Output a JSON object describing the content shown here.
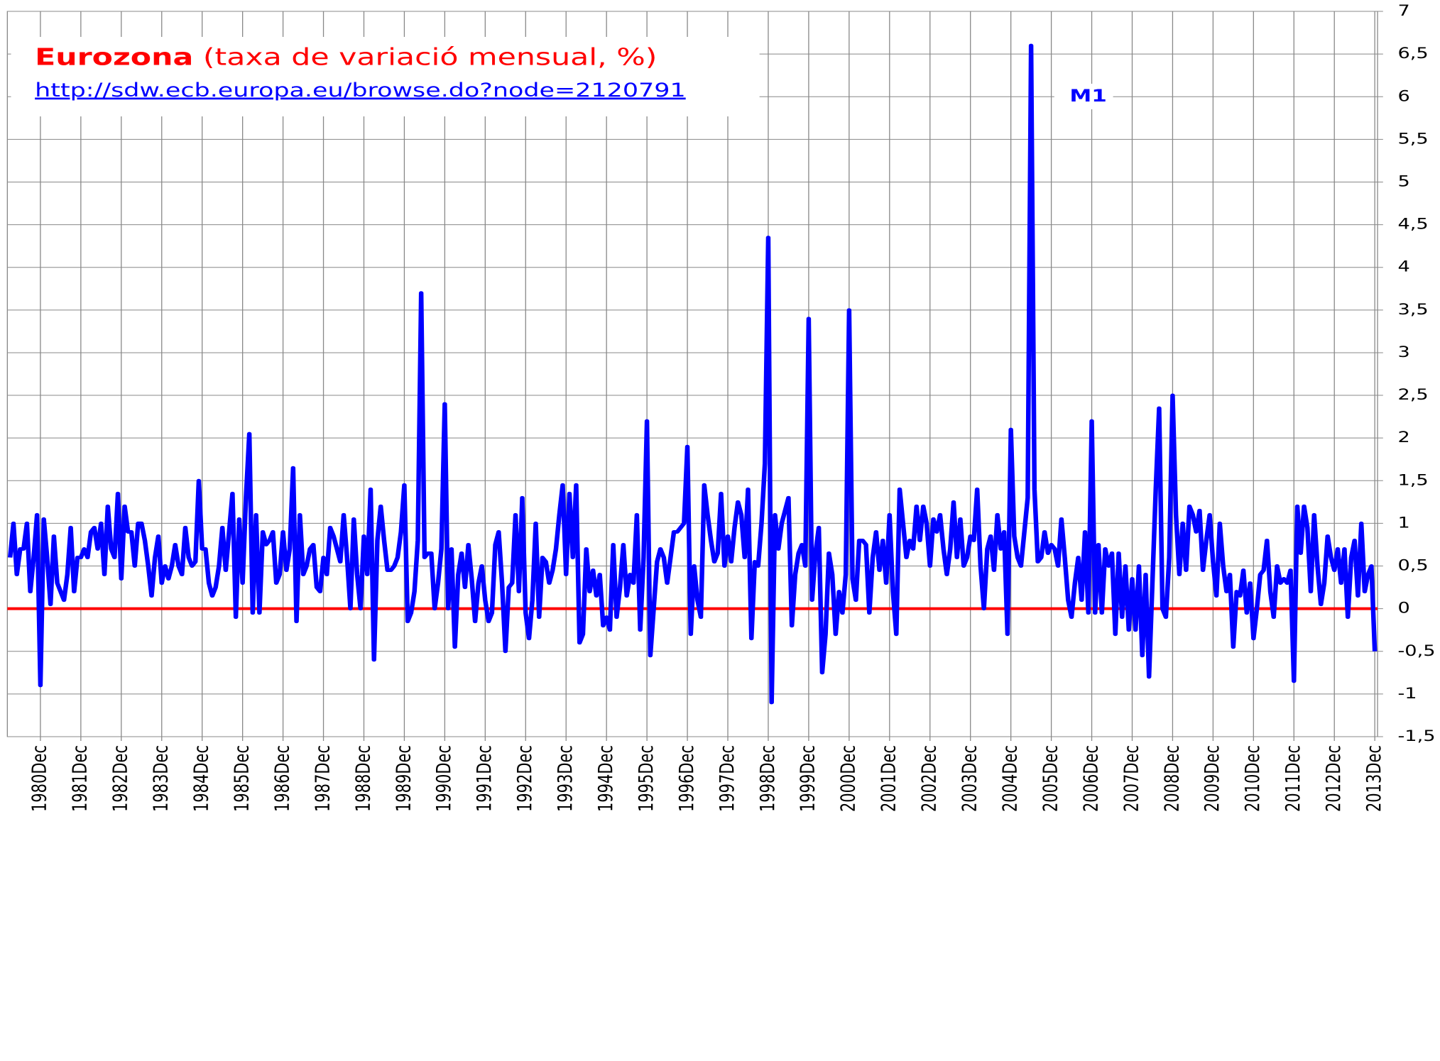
{
  "chart_data": {
    "type": "line",
    "title": "Eurozona",
    "subtitle": "(taxa de variació mensual, %)",
    "source_url": "http://sdw.ecb.europa.eu/browse.do?node=2120791",
    "ylim": [
      -1.5,
      7
    ],
    "yticks": [
      {
        "value": -1.5,
        "label": "-1,5"
      },
      -1,
      {
        "value": -0.5,
        "label": "-0,5"
      },
      0,
      {
        "value": 0.5,
        "label": "0,5"
      },
      1,
      {
        "value": 1.5,
        "label": "1,5"
      },
      2,
      {
        "value": 2.5,
        "label": "2,5"
      },
      3,
      {
        "value": 3.5,
        "label": "3,5"
      },
      4,
      {
        "value": 4.5,
        "label": "4,5"
      },
      5,
      {
        "value": 5.5,
        "label": "5,5"
      },
      6,
      {
        "value": 6.5,
        "label": "6,5"
      },
      7
    ],
    "grid": true,
    "zero_line_color": "#ff0000",
    "categories": [
      null,
      null,
      null,
      null,
      null,
      null,
      null,
      null,
      null,
      "1980Dec",
      null,
      null,
      null,
      null,
      null,
      null,
      null,
      null,
      null,
      null,
      null,
      "1981Dec",
      null,
      null,
      null,
      null,
      null,
      null,
      null,
      null,
      null,
      null,
      null,
      "1982Dec",
      null,
      null,
      null,
      null,
      null,
      null,
      null,
      null,
      null,
      null,
      null,
      "1983Dec",
      null,
      null,
      null,
      null,
      null,
      null,
      null,
      null,
      null,
      null,
      null,
      "1984Dec",
      null,
      null,
      null,
      null,
      null,
      null,
      null,
      null,
      null,
      null,
      null,
      "1985Dec",
      null,
      null,
      null,
      null,
      null,
      null,
      null,
      null,
      null,
      null,
      null,
      "1986Dec",
      null,
      null,
      null,
      null,
      null,
      null,
      null,
      null,
      null,
      null,
      null,
      "1987Dec",
      null,
      null,
      null,
      null,
      null,
      null,
      null,
      null,
      null,
      null,
      null,
      "1988Dec",
      null,
      null,
      null,
      null,
      null,
      null,
      null,
      null,
      null,
      null,
      null,
      "1989Dec",
      null,
      null,
      null,
      null,
      null,
      null,
      null,
      null,
      null,
      null,
      null,
      "1990Dec",
      null,
      null,
      null,
      null,
      null,
      null,
      null,
      null,
      null,
      null,
      null,
      "1991Dec",
      null,
      null,
      null,
      null,
      null,
      null,
      null,
      null,
      null,
      null,
      null,
      "1992Dec",
      null,
      null,
      null,
      null,
      null,
      null,
      null,
      null,
      null,
      null,
      null,
      "1993Dec",
      null,
      null,
      null,
      null,
      null,
      null,
      null,
      null,
      null,
      null,
      null,
      "1994Dec",
      null,
      null,
      null,
      null,
      null,
      null,
      null,
      null,
      null,
      null,
      null,
      "1995Dec",
      null,
      null,
      null,
      null,
      null,
      null,
      null,
      null,
      null,
      null,
      null,
      "1996Dec",
      null,
      null,
      null,
      null,
      null,
      null,
      null,
      null,
      null,
      null,
      null,
      "1997Dec",
      null,
      null,
      null,
      null,
      null,
      null,
      null,
      null,
      null,
      null,
      null,
      "1998Dec",
      null,
      null,
      null,
      null,
      null,
      null,
      null,
      null,
      null,
      null,
      null,
      "1999Dec",
      null,
      null,
      null,
      null,
      null,
      null,
      null,
      null,
      null,
      null,
      null,
      "2000Dec",
      null,
      null,
      null,
      null,
      null,
      null,
      null,
      null,
      null,
      null,
      null,
      "2001Dec",
      null,
      null,
      null,
      null,
      null,
      null,
      null,
      null,
      null,
      null,
      null,
      "2002Dec",
      null,
      null,
      null,
      null,
      null,
      null,
      null,
      null,
      null,
      null,
      null,
      "2003Dec",
      null,
      null,
      null,
      null,
      null,
      null,
      null,
      null,
      null,
      null,
      null,
      "2004Dec",
      null,
      null,
      null,
      null,
      null,
      null,
      null,
      null,
      null,
      null,
      null,
      "2005Dec",
      null,
      null,
      null,
      null,
      null,
      null,
      null,
      null,
      null,
      null,
      null,
      "2006Dec",
      null,
      null,
      null,
      null,
      null,
      null,
      null,
      null,
      null,
      null,
      null,
      "2007Dec",
      null,
      null,
      null,
      null,
      null,
      null,
      null,
      null,
      null,
      null,
      null,
      "2008Dec",
      null,
      null,
      null,
      null,
      null,
      null,
      null,
      null,
      null,
      null,
      null,
      "2009Dec",
      null,
      null,
      null,
      null,
      null,
      null,
      null,
      null,
      null,
      null,
      null,
      "2010Dec",
      null,
      null,
      null,
      null,
      null,
      null,
      null,
      null,
      null,
      null,
      null,
      "2011Dec",
      null,
      null,
      null,
      null,
      null,
      null,
      null,
      null,
      null,
      null,
      null,
      "2012Dec",
      null,
      null,
      null,
      null,
      null,
      null,
      null,
      null,
      null,
      null,
      null,
      "2013Dec"
    ],
    "series": [
      {
        "name": "M1",
        "color": "#0000ff",
        "values": [
          0.6,
          1.0,
          0.4,
          0.7,
          0.7,
          1.0,
          0.2,
          0.6,
          1.1,
          -0.9,
          1.05,
          0.6,
          0.05,
          0.85,
          0.3,
          0.2,
          0.1,
          0.4,
          0.95,
          0.2,
          0.6,
          0.6,
          0.7,
          0.6,
          0.9,
          0.95,
          0.7,
          1.0,
          0.4,
          1.2,
          0.7,
          0.6,
          1.35,
          0.35,
          1.2,
          0.9,
          0.9,
          0.5,
          1.0,
          1.0,
          0.8,
          0.5,
          0.15,
          0.6,
          0.85,
          0.3,
          0.5,
          0.35,
          0.5,
          0.75,
          0.5,
          0.4,
          0.95,
          0.6,
          0.5,
          0.55,
          1.5,
          0.7,
          0.7,
          0.3,
          0.15,
          0.25,
          0.5,
          0.95,
          0.45,
          0.9,
          1.35,
          -0.1,
          1.05,
          0.3,
          1.3,
          2.05,
          -0.05,
          1.1,
          -0.05,
          0.9,
          0.75,
          0.8,
          0.9,
          0.3,
          0.4,
          0.9,
          0.45,
          0.7,
          1.65,
          -0.15,
          1.1,
          0.4,
          0.5,
          0.7,
          0.75,
          0.25,
          0.2,
          0.6,
          0.4,
          0.95,
          0.85,
          0.7,
          0.55,
          1.1,
          0.6,
          0.0,
          1.05,
          0.4,
          0.0,
          0.85,
          0.4,
          1.4,
          -0.6,
          0.8,
          1.2,
          0.8,
          0.45,
          0.45,
          0.5,
          0.6,
          0.9,
          1.45,
          -0.15,
          -0.05,
          0.2,
          0.8,
          3.7,
          0.6,
          0.65,
          0.65,
          0.0,
          0.3,
          0.7,
          2.4,
          0.0,
          0.7,
          -0.45,
          0.4,
          0.65,
          0.25,
          0.75,
          0.35,
          -0.15,
          0.3,
          0.5,
          0.1,
          -0.15,
          -0.05,
          0.75,
          0.9,
          0.3,
          -0.5,
          0.25,
          0.3,
          1.1,
          0.2,
          1.3,
          -0.05,
          -0.35,
          0.1,
          1.0,
          -0.1,
          0.6,
          0.55,
          0.3,
          0.45,
          0.7,
          1.1,
          1.45,
          0.4,
          1.35,
          0.6,
          1.45,
          -0.4,
          -0.3,
          0.7,
          0.2,
          0.45,
          0.15,
          0.4,
          -0.2,
          -0.1,
          -0.25,
          0.75,
          -0.1,
          0.25,
          0.75,
          0.15,
          0.4,
          0.3,
          1.1,
          -0.25,
          0.6,
          2.2,
          -0.55,
          0.0,
          0.55,
          0.7,
          0.6,
          0.3,
          0.6,
          0.9,
          0.9,
          0.95,
          1.0,
          1.9,
          -0.3,
          0.5,
          0.1,
          -0.1,
          1.45,
          1.1,
          0.8,
          0.55,
          0.65,
          1.35,
          0.5,
          0.85,
          0.55,
          0.95,
          1.25,
          1.1,
          0.6,
          1.4,
          -0.35,
          0.55,
          0.5,
          1.0,
          1.7,
          4.35,
          -1.1,
          1.1,
          0.7,
          1.0,
          1.15,
          1.3,
          -0.2,
          0.4,
          0.65,
          0.75,
          0.5,
          3.4,
          0.1,
          0.65,
          0.95,
          -0.75,
          -0.3,
          0.65,
          0.4,
          -0.3,
          0.2,
          -0.05,
          0.4,
          3.5,
          0.35,
          0.1,
          0.8,
          0.8,
          0.75,
          -0.05,
          0.6,
          0.9,
          0.45,
          0.8,
          0.3,
          1.1,
          0.2,
          -0.3,
          1.4,
          1.0,
          0.6,
          0.8,
          0.7,
          1.2,
          0.8,
          1.2,
          1.0,
          0.5,
          1.05,
          0.9,
          1.1,
          0.7,
          0.4,
          0.7,
          1.25,
          0.6,
          1.05,
          0.5,
          0.6,
          0.85,
          0.8,
          1.4,
          0.5,
          0.0,
          0.7,
          0.85,
          0.45,
          1.1,
          0.7,
          0.9,
          -0.3,
          2.1,
          0.85,
          0.6,
          0.5,
          0.9,
          1.3,
          6.6,
          1.4,
          0.55,
          0.6,
          0.9,
          0.65,
          0.75,
          0.7,
          0.5,
          1.05,
          0.6,
          0.1,
          -0.1,
          0.3,
          0.6,
          0.1,
          0.9,
          -0.05,
          2.2,
          -0.05,
          0.75,
          -0.05,
          0.7,
          0.5,
          0.65,
          -0.3,
          0.65,
          -0.1,
          0.5,
          -0.25,
          0.35,
          -0.25,
          0.5,
          -0.55,
          0.4,
          -0.8,
          0.3,
          1.4,
          2.35,
          0.0,
          -0.1,
          0.6,
          2.5,
          1.1,
          0.4,
          1.0,
          0.45,
          1.2,
          1.1,
          0.9,
          1.15,
          0.45,
          0.8,
          1.1,
          0.55,
          0.15,
          1.0,
          0.5,
          0.2,
          0.4,
          -0.45,
          0.2,
          0.15,
          0.45,
          -0.05,
          0.3,
          -0.35,
          0.0,
          0.4,
          0.45,
          0.8,
          0.2,
          -0.1,
          0.5,
          0.3,
          0.35,
          0.3,
          0.45,
          -0.85,
          1.2,
          0.65,
          1.2,
          0.95,
          0.2,
          1.1,
          0.5,
          0.05,
          0.3,
          0.85,
          0.6,
          0.45,
          0.7,
          0.3,
          0.7,
          -0.1,
          0.6,
          0.8,
          0.15,
          1.0,
          0.2,
          0.4,
          0.5,
          -0.5
        ]
      }
    ]
  }
}
